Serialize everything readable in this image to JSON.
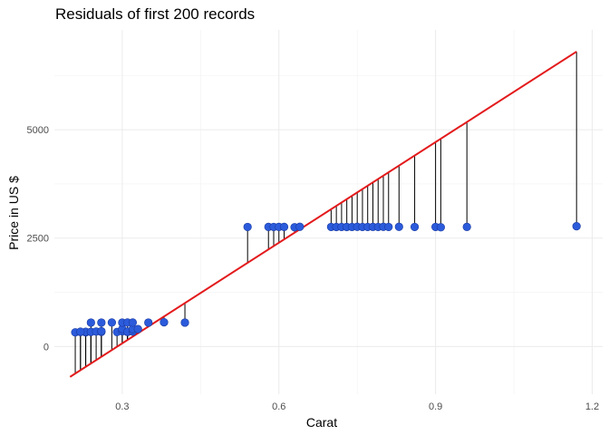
{
  "chart_data": {
    "type": "scatter",
    "title": "Residuals of first 200 records",
    "xlabel": "Carat",
    "ylabel": "Price in US $",
    "xlim": [
      0.17,
      1.22
    ],
    "ylim": [
      -1100,
      7300
    ],
    "x_ticks": [
      0.3,
      0.6,
      0.9,
      1.2
    ],
    "x_tick_labels": [
      "0.3",
      "0.6",
      "0.9",
      "1.2"
    ],
    "y_ticks": [
      0,
      2500,
      5000
    ],
    "y_tick_labels": [
      "0",
      "2500",
      "5000"
    ],
    "grid": true,
    "regression_line": {
      "color": "#e31a1c",
      "x": [
        0.2,
        1.17
      ],
      "y": [
        -700,
        6800
      ]
    },
    "points": [
      {
        "x": 0.21,
        "y": 326
      },
      {
        "x": 0.22,
        "y": 334
      },
      {
        "x": 0.23,
        "y": 326
      },
      {
        "x": 0.23,
        "y": 340
      },
      {
        "x": 0.24,
        "y": 336
      },
      {
        "x": 0.24,
        "y": 337
      },
      {
        "x": 0.25,
        "y": 345
      },
      {
        "x": 0.26,
        "y": 337
      },
      {
        "x": 0.26,
        "y": 354
      },
      {
        "x": 0.22,
        "y": 342
      },
      {
        "x": 0.29,
        "y": 334
      },
      {
        "x": 0.3,
        "y": 351
      },
      {
        "x": 0.3,
        "y": 405
      },
      {
        "x": 0.31,
        "y": 335
      },
      {
        "x": 0.31,
        "y": 344
      },
      {
        "x": 0.32,
        "y": 345
      },
      {
        "x": 0.32,
        "y": 403
      },
      {
        "x": 0.33,
        "y": 403
      },
      {
        "x": 0.24,
        "y": 552
      },
      {
        "x": 0.26,
        "y": 552
      },
      {
        "x": 0.28,
        "y": 553
      },
      {
        "x": 0.3,
        "y": 552
      },
      {
        "x": 0.31,
        "y": 553
      },
      {
        "x": 0.32,
        "y": 553
      },
      {
        "x": 0.35,
        "y": 552
      },
      {
        "x": 0.38,
        "y": 559
      },
      {
        "x": 0.42,
        "y": 552
      },
      {
        "x": 0.54,
        "y": 2757
      },
      {
        "x": 0.58,
        "y": 2759
      },
      {
        "x": 0.59,
        "y": 2757
      },
      {
        "x": 0.6,
        "y": 2759
      },
      {
        "x": 0.61,
        "y": 2759
      },
      {
        "x": 0.63,
        "y": 2750
      },
      {
        "x": 0.64,
        "y": 2760
      },
      {
        "x": 0.7,
        "y": 2757
      },
      {
        "x": 0.71,
        "y": 2756
      },
      {
        "x": 0.72,
        "y": 2757
      },
      {
        "x": 0.73,
        "y": 2756
      },
      {
        "x": 0.74,
        "y": 2757
      },
      {
        "x": 0.75,
        "y": 2760
      },
      {
        "x": 0.76,
        "y": 2757
      },
      {
        "x": 0.77,
        "y": 2757
      },
      {
        "x": 0.78,
        "y": 2759
      },
      {
        "x": 0.79,
        "y": 2757
      },
      {
        "x": 0.8,
        "y": 2760
      },
      {
        "x": 0.81,
        "y": 2757
      },
      {
        "x": 0.83,
        "y": 2760
      },
      {
        "x": 0.86,
        "y": 2757
      },
      {
        "x": 0.9,
        "y": 2757
      },
      {
        "x": 0.91,
        "y": 2750
      },
      {
        "x": 0.96,
        "y": 2759
      },
      {
        "x": 1.17,
        "y": 2774
      }
    ],
    "point_color": "#2b5bdb",
    "segment_color": "#000000"
  }
}
